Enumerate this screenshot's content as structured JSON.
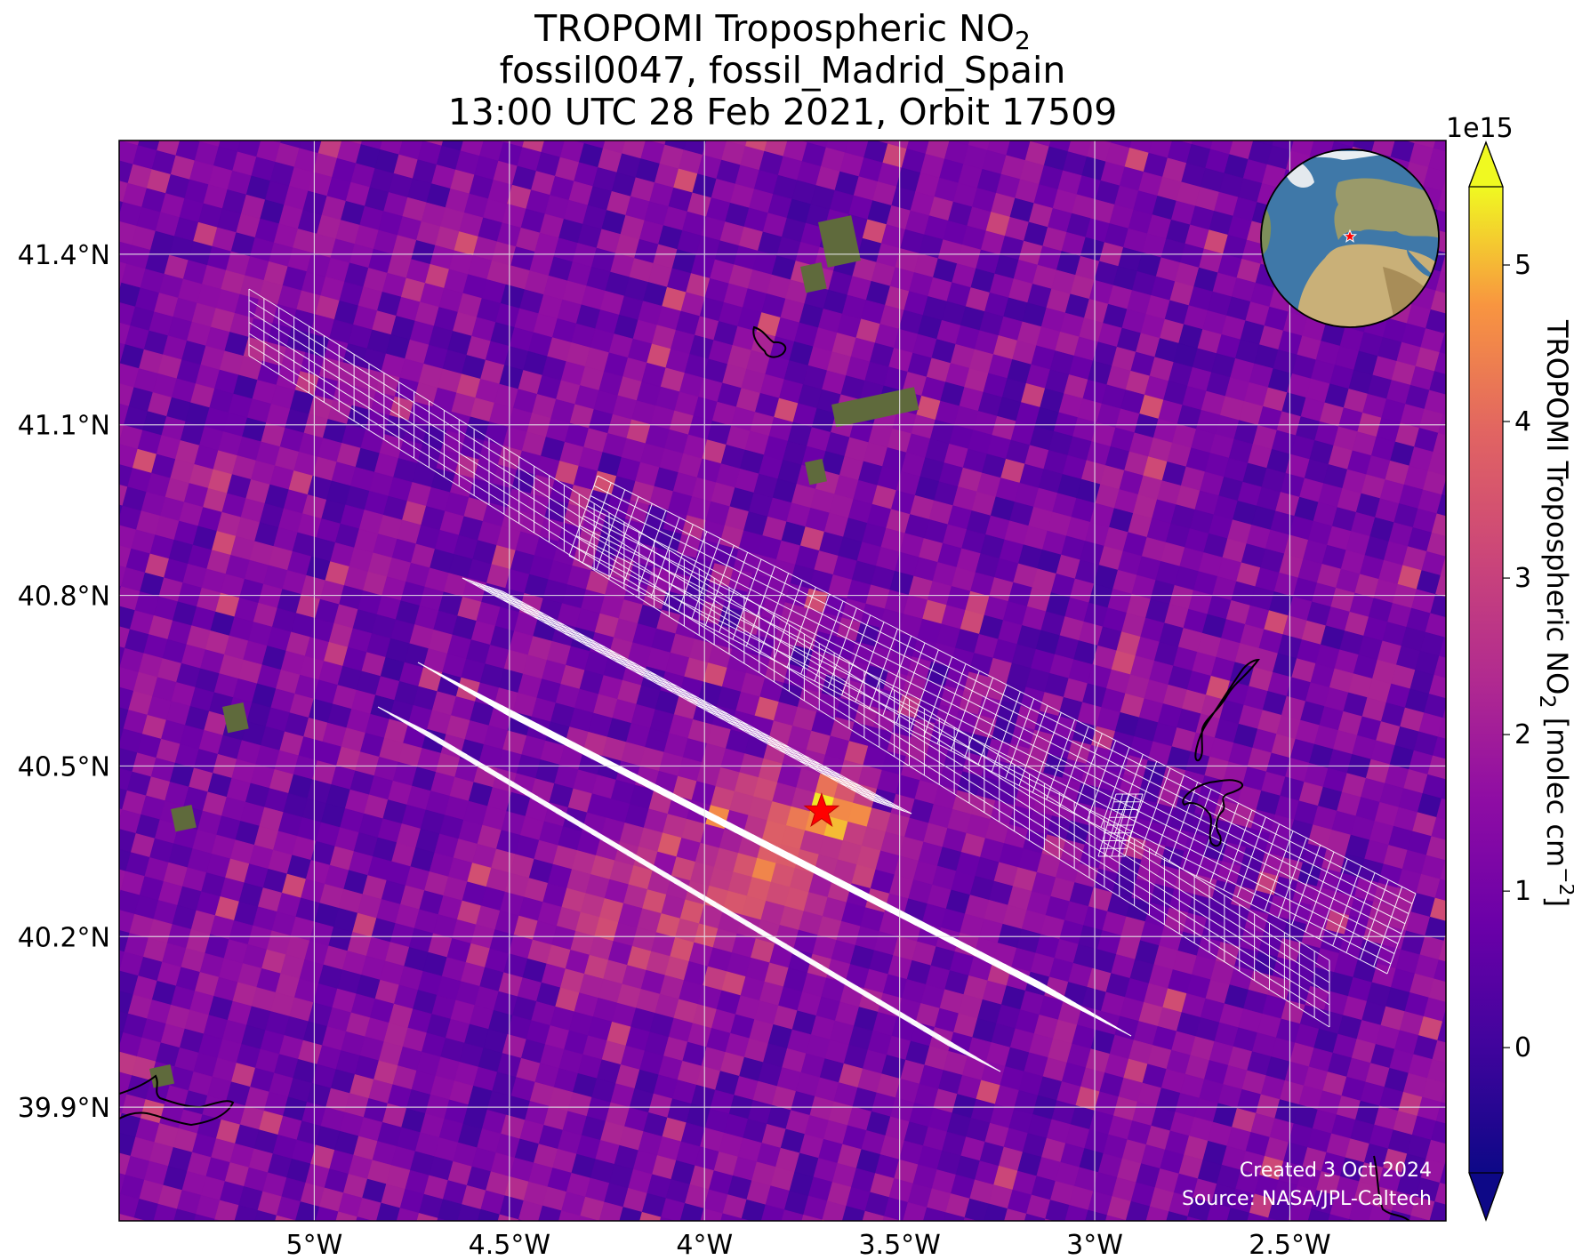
{
  "title": {
    "line1_main": "TROPOMI Tropospheric NO",
    "line1_sub": "2",
    "line2": "fossil0047, fossil_Madrid_Spain",
    "line3": "13:00 UTC 28 Feb 2021, Orbit 17509"
  },
  "map": {
    "lon_range": [
      -5.5,
      -2.1
    ],
    "lat_range": [
      39.7,
      41.6
    ],
    "lon_ticks": [
      {
        "value": -5.0,
        "label": "5°W"
      },
      {
        "value": -4.5,
        "label": "4.5°W"
      },
      {
        "value": -4.0,
        "label": "4°W"
      },
      {
        "value": -3.5,
        "label": "3.5°W"
      },
      {
        "value": -3.0,
        "label": "3°W"
      },
      {
        "value": -2.5,
        "label": "2.5°W"
      }
    ],
    "lat_ticks": [
      {
        "value": 41.4,
        "label": "41.4°N"
      },
      {
        "value": 41.1,
        "label": "41.1°N"
      },
      {
        "value": 40.8,
        "label": "40.8°N"
      },
      {
        "value": 40.5,
        "label": "40.5°N"
      },
      {
        "value": 40.2,
        "label": "40.2°N"
      },
      {
        "value": 39.9,
        "label": "39.9°N"
      }
    ],
    "gridlines": true,
    "source_marker": {
      "lon": -3.7,
      "lat": 40.42,
      "symbol": "star",
      "color": "#ff0000"
    },
    "inset_globe": {
      "position": "top-right",
      "marker_color": "#ff0000"
    },
    "colormap": "plasma",
    "value_range": [
      -0.8,
      5.5
    ],
    "value_scale": "1e15"
  },
  "colorbar": {
    "multiplier_label": "1e15",
    "ticks": [
      {
        "value": 0,
        "label": "0"
      },
      {
        "value": 1,
        "label": "1"
      },
      {
        "value": 2,
        "label": "2"
      },
      {
        "value": 3,
        "label": "3"
      },
      {
        "value": 4,
        "label": "4"
      },
      {
        "value": 5,
        "label": "5"
      }
    ],
    "label_main": "TROPOMI Tropospheric NO",
    "label_sub": "2",
    "label_unit": " [molec cm",
    "label_sup": "−2",
    "label_end": "]",
    "extend": "both"
  },
  "credits": {
    "created": "Created 3 Oct 2024",
    "source": "Source: NASA/JPL-Caltech"
  },
  "colors": {
    "grid": "#e8e8e8",
    "swath_outline": "#ffffff",
    "coastline": "#000000",
    "background_pixel": "#8f1ea3"
  }
}
